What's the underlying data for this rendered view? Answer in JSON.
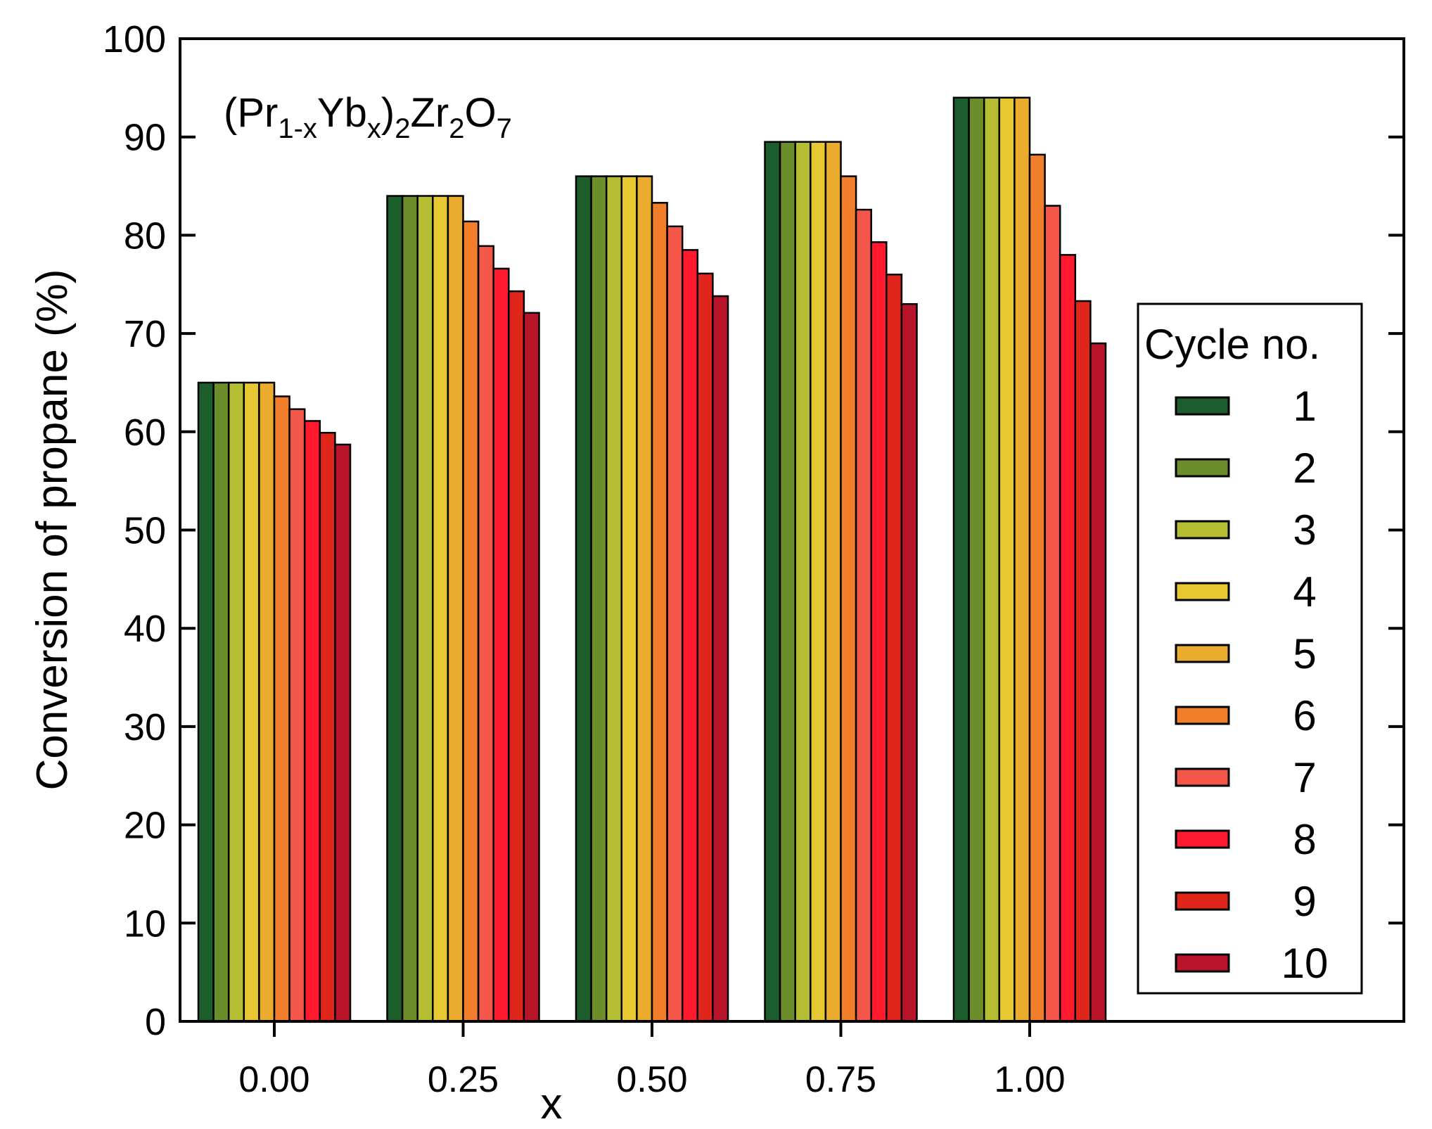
{
  "chart_data": {
    "type": "bar",
    "title": "",
    "annotation": {
      "formula_parts": [
        "(Pr",
        "1-x",
        "Yb",
        "x",
        ")",
        "2",
        "Zr",
        "2",
        "O",
        "7"
      ]
    },
    "xlabel": "x",
    "ylabel": "Conversion of propane (%)",
    "ylim": [
      0,
      100
    ],
    "yticks": [
      "0",
      "10",
      "20",
      "30",
      "40",
      "50",
      "60",
      "70",
      "80",
      "90",
      "100"
    ],
    "categories": [
      "0.00",
      "0.25",
      "0.50",
      "0.75",
      "1.00"
    ],
    "legend": {
      "title": "Cycle no.",
      "position": "right"
    },
    "series": [
      {
        "name": "1",
        "color": "#1b5e2b",
        "values": [
          65,
          84,
          86,
          89.5,
          94
        ]
      },
      {
        "name": "2",
        "color": "#6b8e2a",
        "values": [
          65,
          84,
          86,
          89.5,
          94
        ]
      },
      {
        "name": "3",
        "color": "#b5bd32",
        "values": [
          65,
          84,
          86,
          89.5,
          94
        ]
      },
      {
        "name": "4",
        "color": "#e8c832",
        "values": [
          65,
          84,
          86,
          89.5,
          94
        ]
      },
      {
        "name": "5",
        "color": "#ebac2e",
        "values": [
          65,
          84,
          86,
          89.5,
          94
        ]
      },
      {
        "name": "6",
        "color": "#f07e2b",
        "values": [
          63.6,
          81.4,
          83.3,
          86,
          88.2
        ]
      },
      {
        "name": "7",
        "color": "#f5564a",
        "values": [
          62.3,
          78.9,
          80.9,
          82.6,
          83
        ]
      },
      {
        "name": "8",
        "color": "#ff1a2e",
        "values": [
          61.1,
          76.6,
          78.5,
          79.3,
          78
        ]
      },
      {
        "name": "9",
        "color": "#e0261a",
        "values": [
          59.9,
          74.3,
          76.1,
          76,
          73.3
        ]
      },
      {
        "name": "10",
        "color": "#b8142a",
        "values": [
          58.7,
          72.1,
          73.8,
          73,
          69
        ]
      }
    ]
  }
}
